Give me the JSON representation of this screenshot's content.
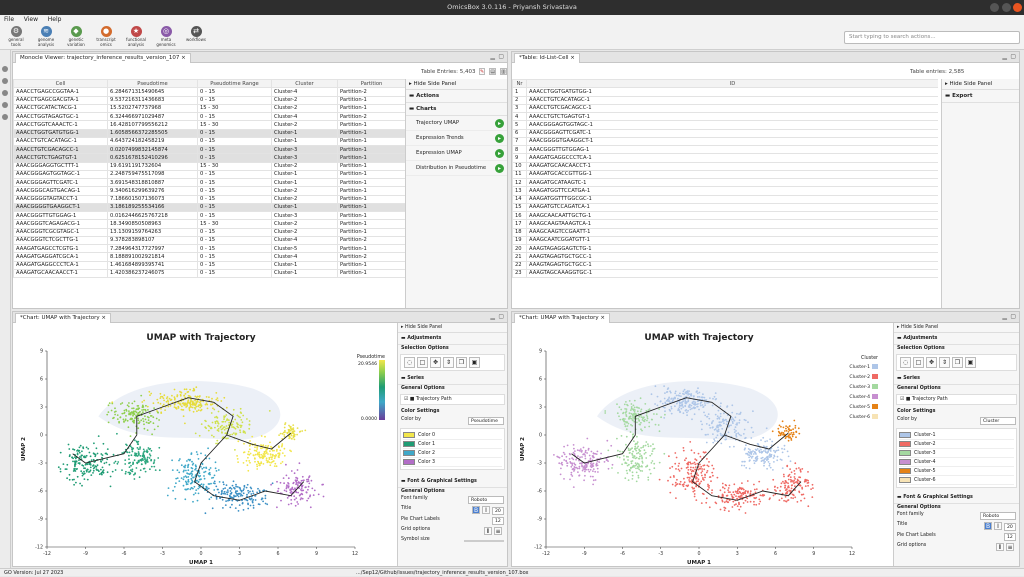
{
  "window": {
    "title": "OmicsBox 3.0.116 - Priyansh Srivastava"
  },
  "menu": [
    "File",
    "View",
    "Help"
  ],
  "toolbar": [
    {
      "label": "general\ntools",
      "icon": "tools-icon"
    },
    {
      "label": "genome\nanalysis",
      "icon": "genome-icon"
    },
    {
      "label": "genetic\nvariation",
      "icon": "variation-icon"
    },
    {
      "label": "transcript\nomics",
      "icon": "transcriptomics-icon"
    },
    {
      "label": "functional\nanalysis",
      "icon": "functional-icon"
    },
    {
      "label": "meta\ngenomics",
      "icon": "metagenomics-icon"
    },
    {
      "label": "workflows",
      "icon": "workflows-icon"
    }
  ],
  "search": {
    "placeholder": "Start typing to search actions..."
  },
  "monocle": {
    "tab": "Monocle Viewer: trajectory_inference_results_version_107",
    "entries": "Table Entries: 5,403",
    "columns": [
      "Cell",
      "Pseudotime",
      "Pseudotime Range",
      "Cluster",
      "Partition"
    ],
    "rows": [
      [
        "AAACCTGAGCCGGTAA-1",
        "6.284671315490645",
        "0 - 15",
        "Cluster-4",
        "Partition-2"
      ],
      [
        "AAACCTGAGCGACGTA-1",
        "9.537216311436683",
        "0 - 15",
        "Cluster-2",
        "Partition-1"
      ],
      [
        "AAACCTGCATACTACG-1",
        "15.5202747737968",
        "15 - 30",
        "Cluster-2",
        "Partition-1"
      ],
      [
        "AAACCTGGTAGAGTGC-1",
        "6.324466971029487",
        "0 - 15",
        "Cluster-4",
        "Partition-2"
      ],
      [
        "AAACCTGGTCAAACTC-1",
        "16.428107799556212",
        "15 - 30",
        "Cluster-2",
        "Partition-1"
      ],
      [
        "AAACCTGGTGATGTGG-1",
        "1.6058566372285505",
        "0 - 15",
        "Cluster-1",
        "Partition-1"
      ],
      [
        "AAACCTGTCACATAGC-1",
        "4.643724182458219",
        "0 - 15",
        "Cluster-1",
        "Partition-1"
      ],
      [
        "AAACCTGTCGACAGCC-1",
        "0.0207499832145874",
        "0 - 15",
        "Cluster-3",
        "Partition-1"
      ],
      [
        "AAACCTGTCTGAGTGT-1",
        "0.6251678152410296",
        "0 - 15",
        "Cluster-3",
        "Partition-1"
      ],
      [
        "AAACGGGAGGTGCTTT-1",
        "19.6191191732604",
        "15 - 30",
        "Cluster-2",
        "Partition-1"
      ],
      [
        "AAACGGGAGTGGTAGC-1",
        "2.248759475517098",
        "0 - 15",
        "Cluster-1",
        "Partition-1"
      ],
      [
        "AAACGGGAGTTCGATC-1",
        "3.691548318810887",
        "0 - 15",
        "Cluster-1",
        "Partition-1"
      ],
      [
        "AAACGGGCAGTGACAG-1",
        "9.340616299639276",
        "0 - 15",
        "Cluster-2",
        "Partition-1"
      ],
      [
        "AAACGGGGTAGTACCT-1",
        "7.186601507136073",
        "0 - 15",
        "Cluster-2",
        "Partition-1"
      ],
      [
        "AAACGGGGTGAAGGCT-1",
        "3.186189255534166",
        "0 - 15",
        "Cluster-1",
        "Partition-1"
      ],
      [
        "AAACGGGTTGTGGAG-1",
        "0.0162446625767218",
        "0 - 15",
        "Cluster-3",
        "Partition-1"
      ],
      [
        "AAACGGGTCAGAGACG-1",
        "18.3490850508963",
        "15 - 30",
        "Cluster-2",
        "Partition-1"
      ],
      [
        "AAACGGGTCGCGTAGC-1",
        "13.1309159764263",
        "0 - 15",
        "Cluster-2",
        "Partition-1"
      ],
      [
        "AAACGGGTCTCGCTTG-1",
        "9.378283898107",
        "0 - 15",
        "Cluster-4",
        "Partition-2"
      ],
      [
        "AAAGATGAGCCTCGTG-1",
        "7.284964317727997",
        "0 - 15",
        "Cluster-5",
        "Partition-1"
      ],
      [
        "AAAGATGAGGATCGCA-1",
        "8.188891002921814",
        "0 - 15",
        "Cluster-4",
        "Partition-2"
      ],
      [
        "AAAGATGAGGCCCTCA-1",
        "1.461684899395741",
        "0 - 15",
        "Cluster-1",
        "Partition-1"
      ],
      [
        "AAAGATGCAACAACCT-1",
        "1.420386237246075",
        "0 - 15",
        "Cluster-1",
        "Partition-1"
      ]
    ],
    "side": {
      "hide": "Hide Side Panel",
      "actions": "Actions",
      "charts": "Charts",
      "items": [
        "Trajectory UMAP",
        "Expression Trends",
        "Expression UMAP",
        "Distribution in Pseudotime"
      ]
    }
  },
  "idtable": {
    "tab": "*Table: Id-List-Cell",
    "entries": "Table entries: 2,585",
    "columns": [
      "Nr",
      "ID"
    ],
    "rows": [
      [
        "1",
        "AAACCTGGTGATGTGG-1"
      ],
      [
        "2",
        "AAACCTGTCACATAGC-1"
      ],
      [
        "3",
        "AAACCTGTCGACAGCC-1"
      ],
      [
        "4",
        "AAACCTGTCTGAGTGT-1"
      ],
      [
        "5",
        "AAACGGGAGTGGTAGC-1"
      ],
      [
        "6",
        "AAACGGGAGTTCGATC-1"
      ],
      [
        "7",
        "AAACGGGGTGAAGGCT-1"
      ],
      [
        "8",
        "AAACGGGTTGTGGAG-1"
      ],
      [
        "9",
        "AAAGATGAGGCCCTCA-1"
      ],
      [
        "10",
        "AAAGATGCAACAACCT-1"
      ],
      [
        "11",
        "AAAGATGCACCGTTGG-1"
      ],
      [
        "12",
        "AAAGATGCATAAGTC-1"
      ],
      [
        "13",
        "AAAGATGGTTCCATGA-1"
      ],
      [
        "14",
        "AAAGATGGTTTGGCGC-1"
      ],
      [
        "15",
        "AAAGATGTCCAGATCA-1"
      ],
      [
        "16",
        "AAAGCAACAATTGCTG-1"
      ],
      [
        "17",
        "AAAGCAAGTAAAGTCA-1"
      ],
      [
        "18",
        "AAAGCAAGTCCGAATT-1"
      ],
      [
        "19",
        "AAAGCAATCGGATGTT-1"
      ],
      [
        "20",
        "AAAGTAGAGGAGTCTG-1"
      ],
      [
        "21",
        "AAAGTAGAGTGCTGCC-1"
      ],
      [
        "22",
        "AAAGTAGAGTGCTGCC-1"
      ],
      [
        "23",
        "AAAGTAGCAAAGGTGC-1"
      ]
    ],
    "side": {
      "hide": "Hide Side Panel",
      "export": "Export"
    }
  },
  "chart1": {
    "tab": "*Chart: UMAP with Trajectory",
    "title": "UMAP with Trajectory",
    "xlabel": "UMAP 1",
    "ylabel": "UMAP 2",
    "legend_title": "Pseudotime",
    "legend_max": "20.9546",
    "legend_min": "0.0000",
    "side": {
      "hide": "Hide Side Panel",
      "adjustments": "Adjustments",
      "selection": "Selection Options",
      "series": "Series",
      "general": "General Options",
      "trajectory": "Trajectory Path",
      "color_settings": "Color Settings",
      "color_by": "Color by",
      "color_by_value": "Pseudotime",
      "colors": [
        "Color 0",
        "Color 1",
        "Color 2",
        "Color 3"
      ],
      "color_hex": [
        "#f2e64b",
        "#1f9c74",
        "#3fa8c8",
        "#b26dc7"
      ],
      "font_settings": "Font & Graphical Settings",
      "font_family": "Font family",
      "font_value": "Roboto",
      "title_lbl": "Title",
      "title_size": "20",
      "pie_lbl": "Pie Chart Labels",
      "pie_size": "12",
      "grid_lbl": "Grid options",
      "symbol_lbl": "Symbol size"
    }
  },
  "chart2": {
    "tab": "*Chart: UMAP with Trajectory",
    "title": "UMAP with Trajectory",
    "xlabel": "UMAP 1",
    "ylabel": "UMAP 2",
    "legend_title": "Cluster",
    "legend": [
      "Cluster-1",
      "Cluster-2",
      "Cluster-3",
      "Cluster-4",
      "Cluster-5",
      "Cluster-6"
    ],
    "legend_colors": [
      "#aec6e8",
      "#ef6a64",
      "#a4d9a0",
      "#c78fd0",
      "#e58216",
      "#f7e3b5"
    ],
    "side": {
      "hide": "Hide Side Panel",
      "adjustments": "Adjustments",
      "selection": "Selection Options",
      "series": "Series",
      "general": "General Options",
      "trajectory": "Trajectory Path",
      "color_settings": "Color Settings",
      "color_by": "Color by",
      "color_by_value": "Cluster",
      "font_settings": "Font & Graphical Settings",
      "font_family": "Font family",
      "font_value": "Roboto",
      "title_lbl": "Title",
      "title_size": "20",
      "pie_lbl": "Pie Chart Labels",
      "pie_size": "12",
      "grid_lbl": "Grid options"
    }
  },
  "status": {
    "left": "GO Version: Jul 27 2023",
    "right": ".../Sep12/Github/issues/trajectory_inference_results_version_107.box"
  },
  "chart_data": [
    {
      "type": "scatter",
      "title": "UMAP with Trajectory",
      "xlabel": "UMAP 1",
      "ylabel": "UMAP 2",
      "xlim": [
        -12,
        12
      ],
      "ylim": [
        -12,
        9
      ],
      "color_by": "Pseudotime",
      "color_range": [
        0.0,
        20.9546
      ],
      "xticks": [
        -12,
        -9,
        -6,
        -3,
        0,
        3,
        6,
        9,
        12
      ],
      "yticks": [
        -12,
        -9,
        -6,
        -3,
        0,
        3,
        6,
        9
      ]
    },
    {
      "type": "scatter",
      "title": "UMAP with Trajectory",
      "xlabel": "UMAP 1",
      "ylabel": "UMAP 2",
      "xlim": [
        -12,
        12
      ],
      "ylim": [
        -12,
        9
      ],
      "color_by": "Cluster",
      "series": [
        {
          "name": "Cluster-1"
        },
        {
          "name": "Cluster-2"
        },
        {
          "name": "Cluster-3"
        },
        {
          "name": "Cluster-4"
        },
        {
          "name": "Cluster-5"
        },
        {
          "name": "Cluster-6"
        }
      ],
      "xticks": [
        -12,
        -9,
        -6,
        -3,
        0,
        3,
        6,
        9,
        12
      ],
      "yticks": [
        -12,
        -9,
        -6,
        -3,
        0,
        3,
        6,
        9
      ]
    }
  ]
}
